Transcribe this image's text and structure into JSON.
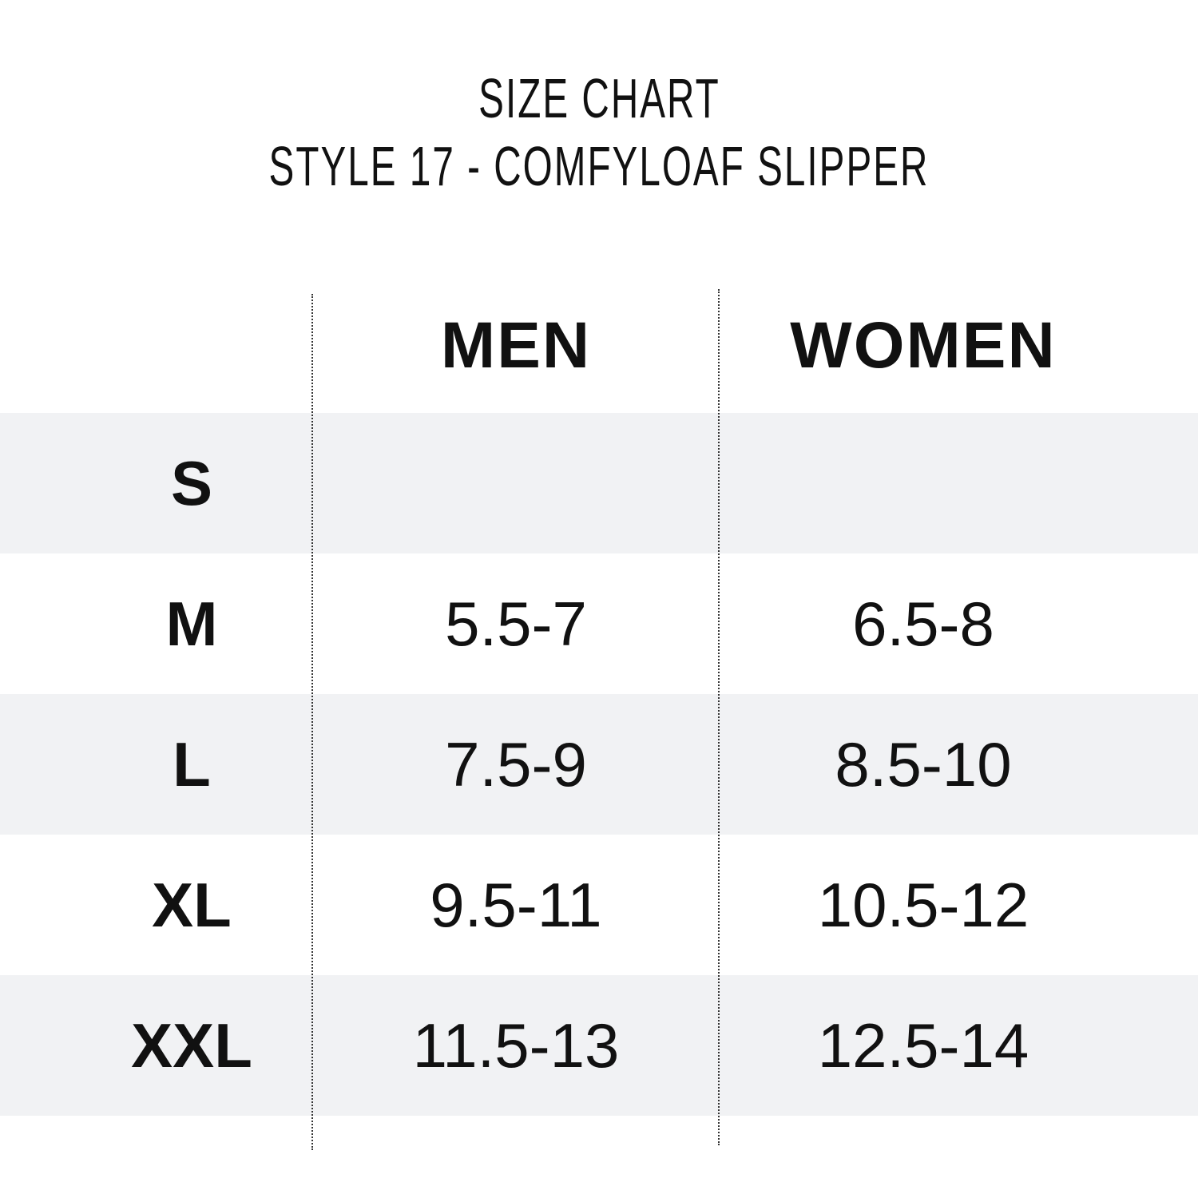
{
  "title": {
    "line1": "SIZE CHART",
    "line2": "STYLE 17 - COMFYLOAF SLIPPER"
  },
  "table": {
    "headers": [
      "",
      "MEN",
      "WOMEN"
    ],
    "rows": [
      {
        "size": "S",
        "men": "",
        "women": ""
      },
      {
        "size": "M",
        "men": "5.5-7",
        "women": "6.5-8"
      },
      {
        "size": "L",
        "men": "7.5-9",
        "women": "8.5-10"
      },
      {
        "size": "XL",
        "men": "9.5-11",
        "women": "10.5-12"
      },
      {
        "size": "XXL",
        "men": "11.5-13",
        "women": "12.5-14"
      }
    ]
  },
  "colors": {
    "stripe": "#f1f2f4",
    "text": "#111111"
  }
}
